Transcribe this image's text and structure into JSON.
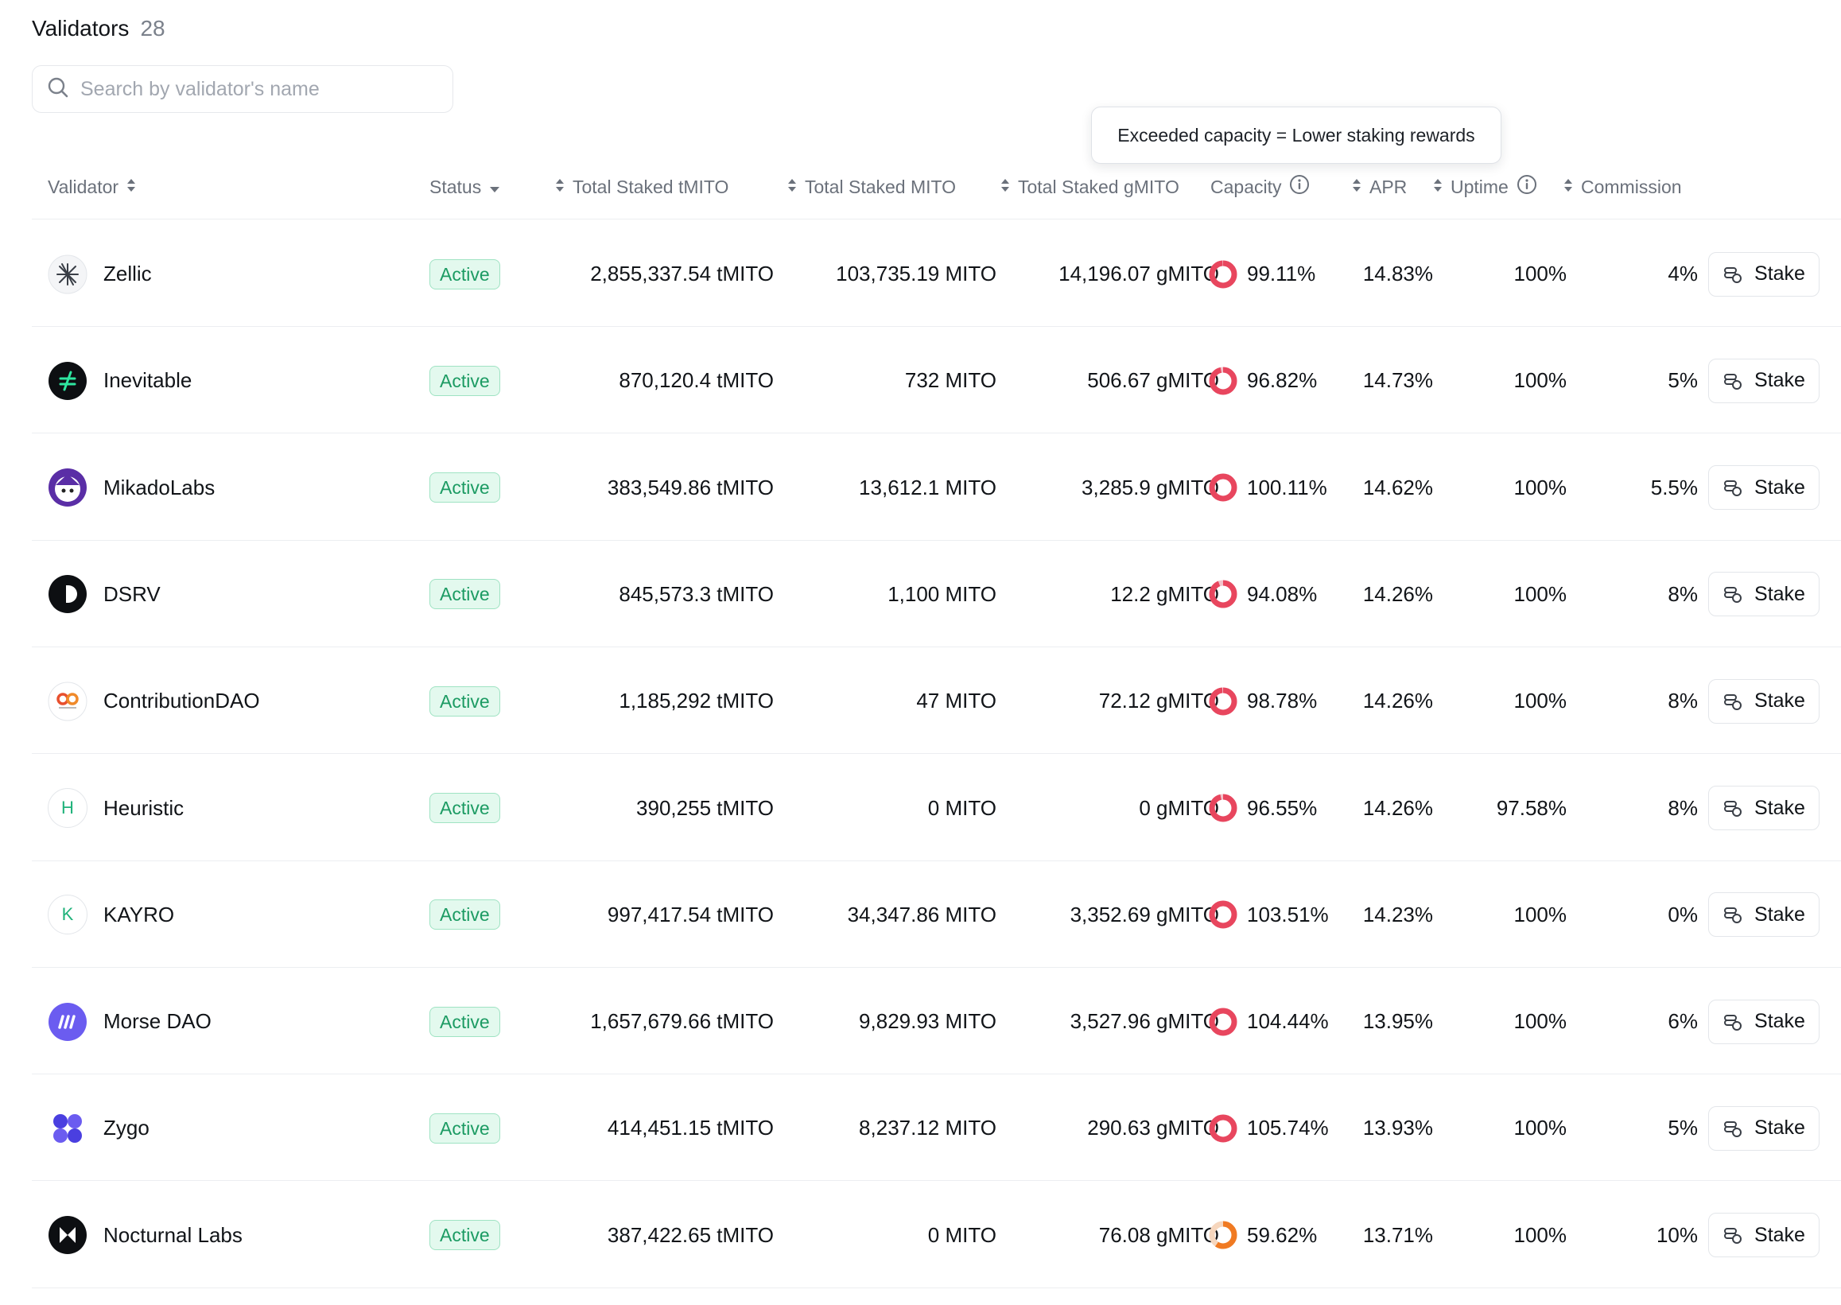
{
  "header": {
    "title": "Validators",
    "count": "28"
  },
  "search": {
    "placeholder": "Search by validator's name"
  },
  "tooltip": {
    "text": "Exceeded capacity = Lower staking rewards"
  },
  "columns": {
    "validator": "Validator",
    "status": "Status",
    "total_staked_tmito": "Total Staked tMITO",
    "total_staked_mito": "Total Staked MITO",
    "total_staked_gmito": "Total Staked gMITO",
    "capacity": "Capacity",
    "apr": "APR",
    "uptime": "Uptime",
    "commission": "Commission"
  },
  "colors": {
    "active_badge_bg": "#e3f9ee",
    "active_badge_text": "#1c9b63",
    "capacity_over": "#e8465e",
    "capacity_under": "#f07a22"
  },
  "stake_label": "Stake",
  "rows": [
    {
      "name": "Zellic",
      "icon": "zellic-logo",
      "status": "Active",
      "tmito": "2,855,337.54 tMITO",
      "mito": "103,735.19 MITO",
      "gmito": "14,196.07 gMITO",
      "capacity": "99.11%",
      "capacity_value": 99.11,
      "apr": "14.83%",
      "uptime": "100%",
      "commission": "4%"
    },
    {
      "name": "Inevitable",
      "icon": "inevitable-logo",
      "status": "Active",
      "tmito": "870,120.4 tMITO",
      "mito": "732 MITO",
      "gmito": "506.67 gMITO",
      "capacity": "96.82%",
      "capacity_value": 96.82,
      "apr": "14.73%",
      "uptime": "100%",
      "commission": "5%"
    },
    {
      "name": "MikadoLabs",
      "icon": "mikadolabs-logo",
      "status": "Active",
      "tmito": "383,549.86 tMITO",
      "mito": "13,612.1 MITO",
      "gmito": "3,285.9 gMITO",
      "capacity": "100.11%",
      "capacity_value": 100.11,
      "apr": "14.62%",
      "uptime": "100%",
      "commission": "5.5%"
    },
    {
      "name": "DSRV",
      "icon": "dsrv-logo",
      "status": "Active",
      "tmito": "845,573.3 tMITO",
      "mito": "1,100 MITO",
      "gmito": "12.2 gMITO",
      "capacity": "94.08%",
      "capacity_value": 94.08,
      "apr": "14.26%",
      "uptime": "100%",
      "commission": "8%"
    },
    {
      "name": "ContributionDAO",
      "icon": "contributiondao-logo",
      "status": "Active",
      "tmito": "1,185,292 tMITO",
      "mito": "47 MITO",
      "gmito": "72.12 gMITO",
      "capacity": "98.78%",
      "capacity_value": 98.78,
      "apr": "14.26%",
      "uptime": "100%",
      "commission": "8%"
    },
    {
      "name": "Heuristic",
      "icon": "letter",
      "letter": "H",
      "status": "Active",
      "tmito": "390,255 tMITO",
      "mito": "0 MITO",
      "gmito": "0 gMITO",
      "capacity": "96.55%",
      "capacity_value": 96.55,
      "apr": "14.26%",
      "uptime": "97.58%",
      "commission": "8%"
    },
    {
      "name": "KAYRO",
      "icon": "letter",
      "letter": "K",
      "status": "Active",
      "tmito": "997,417.54 tMITO",
      "mito": "34,347.86 MITO",
      "gmito": "3,352.69 gMITO",
      "capacity": "103.51%",
      "capacity_value": 103.51,
      "apr": "14.23%",
      "uptime": "100%",
      "commission": "0%"
    },
    {
      "name": "Morse DAO",
      "icon": "morsedao-logo",
      "status": "Active",
      "tmito": "1,657,679.66 tMITO",
      "mito": "9,829.93 MITO",
      "gmito": "3,527.96 gMITO",
      "capacity": "104.44%",
      "capacity_value": 104.44,
      "apr": "13.95%",
      "uptime": "100%",
      "commission": "6%"
    },
    {
      "name": "Zygo",
      "icon": "zygo-logo",
      "status": "Active",
      "tmito": "414,451.15 tMITO",
      "mito": "8,237.12 MITO",
      "gmito": "290.63 gMITO",
      "capacity": "105.74%",
      "capacity_value": 105.74,
      "apr": "13.93%",
      "uptime": "100%",
      "commission": "5%"
    },
    {
      "name": "Nocturnal Labs",
      "icon": "nocturnal-labs-logo",
      "status": "Active",
      "tmito": "387,422.65 tMITO",
      "mito": "0 MITO",
      "gmito": "76.08 gMITO",
      "capacity": "59.62%",
      "capacity_value": 59.62,
      "apr": "13.71%",
      "uptime": "100%",
      "commission": "10%"
    }
  ]
}
